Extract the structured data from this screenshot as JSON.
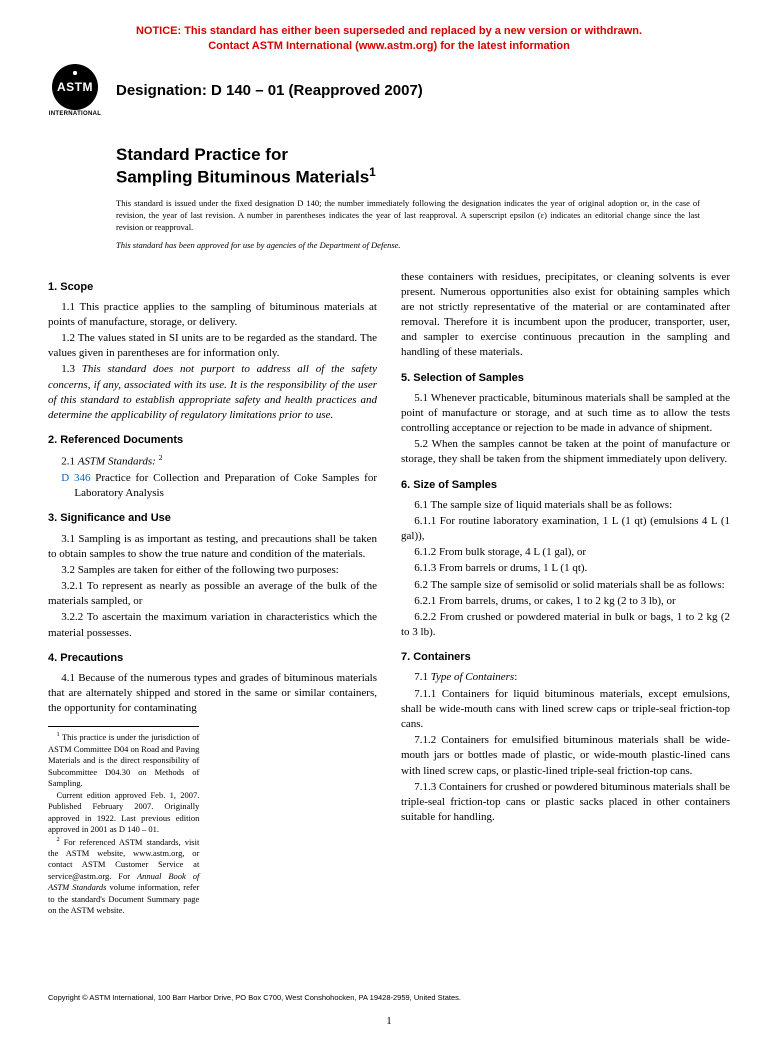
{
  "notice": {
    "line1": "NOTICE: This standard has either been superseded and replaced by a new version or withdrawn.",
    "line2": "Contact ASTM International (www.astm.org) for the latest information"
  },
  "logo": {
    "abbrev": "ASTM",
    "subtext": "INTERNATIONAL"
  },
  "designation": "Designation: D 140 – 01 (Reapproved 2007)",
  "title": {
    "line1": "Standard Practice for",
    "line2": "Sampling Bituminous Materials"
  },
  "issuance": "This standard is issued under the fixed designation D 140; the number immediately following the designation indicates the year of original adoption or, in the case of revision, the year of last revision. A number in parentheses indicates the year of last reapproval. A superscript epsilon (ε) indicates an editorial change since the last revision or reapproval.",
  "dod_note": "This standard has been approved for use by agencies of the Department of Defense.",
  "s1": {
    "head": "1. Scope",
    "p1": "1.1 This practice applies to the sampling of bituminous materials at points of manufacture, storage, or delivery.",
    "p2": "1.2 The values stated in SI units are to be regarded as the standard. The values given in parentheses are for information only.",
    "p3_lead": "1.3 ",
    "p3_italic": "This standard does not purport to address all of the safety concerns, if any, associated with its use. It is the responsibility of the user of this standard to establish appropriate safety and health practices and determine the applicability of regulatory limitations prior to use."
  },
  "s2": {
    "head": "2. Referenced Documents",
    "p1_lead": "2.1 ",
    "p1_italic": "ASTM Standards:",
    "ref_code": "D 346",
    "ref_text": " Practice for Collection and Preparation of Coke Samples for Laboratory Analysis"
  },
  "s3": {
    "head": "3. Significance and Use",
    "p1": "3.1 Sampling is as important as testing, and precautions shall be taken to obtain samples to show the true nature and condition of the materials.",
    "p2": "3.2 Samples are taken for either of the following two purposes:",
    "p3": "3.2.1 To represent as nearly as possible an average of the bulk of the materials sampled, or",
    "p4": "3.2.2 To ascertain the maximum variation in characteristics which the material possesses."
  },
  "s4": {
    "head": "4. Precautions",
    "p1": "4.1 Because of the numerous types and grades of bituminous materials that are alternately shipped and stored in the same or similar containers, the opportunity for contaminating",
    "p1b": "these containers with residues, precipitates, or cleaning solvents is ever present. Numerous opportunities also exist for obtaining samples which are not strictly representative of the material or are contaminated after removal. Therefore it is incumbent upon the producer, transporter, user, and sampler to exercise continuous precaution in the sampling and handling of these materials."
  },
  "s5": {
    "head": "5. Selection of Samples",
    "p1": "5.1 Whenever practicable, bituminous materials shall be sampled at the point of manufacture or storage, and at such time as to allow the tests controlling acceptance or rejection to be made in advance of shipment.",
    "p2": "5.2 When the samples cannot be taken at the point of manufacture or storage, they shall be taken from the shipment immediately upon delivery."
  },
  "s6": {
    "head": "6. Size of Samples",
    "p1": "6.1 The sample size of liquid materials shall be as follows:",
    "p2": "6.1.1 For routine laboratory examination, 1 L (1 qt) (emulsions 4 L (1 gal)),",
    "p3": "6.1.2 From bulk storage, 4 L (1 gal), or",
    "p4": "6.1.3 From barrels or drums, 1 L (1 qt).",
    "p5": "6.2 The sample size of semisolid or solid materials shall be as follows:",
    "p6": "6.2.1 From barrels, drums, or cakes, 1 to 2 kg (2 to 3 lb), or",
    "p7": "6.2.2 From crushed or powdered material in bulk or bags, 1 to 2 kg (2 to 3 lb)."
  },
  "s7": {
    "head": "7. Containers",
    "p1_lead": "7.1 ",
    "p1_italic": "Type of Containers",
    "p1_colon": ":",
    "p2": "7.1.1 Containers for liquid bituminous materials, except emulsions, shall be wide-mouth cans with lined screw caps or triple-seal friction-top cans.",
    "p3": "7.1.2 Containers for emulsified bituminous materials shall be wide-mouth jars or bottles made of plastic, or wide-mouth plastic-lined cans with lined screw caps, or plastic-lined triple-seal friction-top cans.",
    "p4": "7.1.3 Containers for crushed or powdered bituminous materials shall be triple-seal friction-top cans or plastic sacks placed in other containers suitable for handling."
  },
  "footnotes": {
    "f1": "This practice is under the jurisdiction of ASTM Committee D04 on Road and Paving Materials and is the direct responsibility of Subcommittee D04.30 on Methods of Sampling.",
    "f1b": "Current edition approved Feb. 1, 2007. Published February 2007. Originally approved in 1922. Last previous edition approved in 2001 as D 140 – 01.",
    "f2_a": "For referenced ASTM standards, visit the ASTM website, www.astm.org, or contact ASTM Customer Service at service@astm.org. For ",
    "f2_italic": "Annual Book of ASTM Standards",
    "f2_b": " volume information, refer to the standard's Document Summary page on the ASTM website."
  },
  "copyright": "Copyright © ASTM International, 100 Barr Harbor Drive, PO Box C700, West Conshohocken, PA 19428-2959, United States.",
  "page_number": "1"
}
